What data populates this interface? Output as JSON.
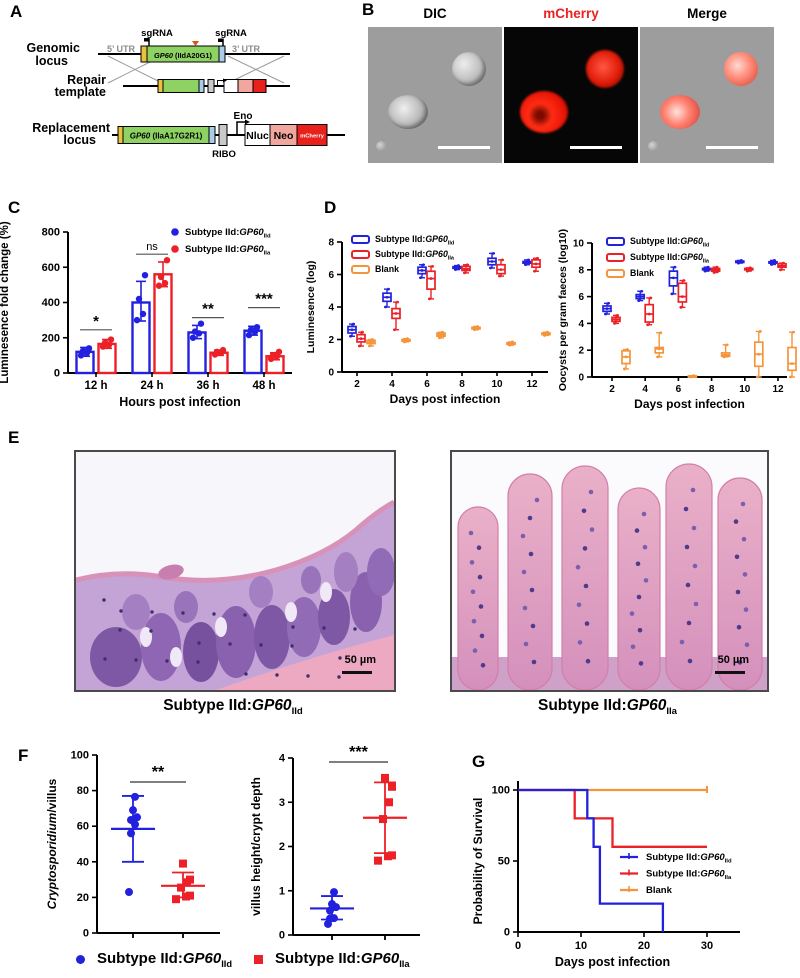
{
  "colors": {
    "blue": "#2121DE",
    "red": "#EC2027",
    "orange": "#F5953B",
    "utr_gray": "#8C8C8C",
    "gene_green": "#8ED264",
    "sp_yellow": "#EBC13D",
    "tm_blue": "#A9CCE8",
    "neo_pink": "#F2A79E",
    "mcherry_red": "#E8211D",
    "box_gray": "#C9C9C9"
  },
  "panels": {
    "a": {
      "letter": "A",
      "row_labels": {
        "genomic": [
          "Genomic",
          "locus"
        ],
        "repair": [
          "Repair",
          "template"
        ],
        "replacement": [
          "Replacement",
          "locus"
        ]
      },
      "utr5": "5’ UTR",
      "utr3": "3’ UTR",
      "sgrna1": "sgRNA",
      "sgrna2": "sgRNA",
      "gene_top_italic": "GP60",
      "gene_top_rest": " (IIdA20G1)",
      "gene_bottom_italic": "GP60",
      "gene_bottom_rest": " (IIaA17G2R1)",
      "eno": "Eno",
      "ribo": "RIBO",
      "nluc": "Nluc",
      "neo": "Neo",
      "mcherry": "mCherry"
    },
    "b": {
      "letter": "B",
      "titles": [
        "DIC",
        "mCherry",
        "Merge"
      ]
    },
    "c": {
      "letter": "C"
    },
    "d": {
      "letter": "D"
    },
    "e": {
      "letter": "E",
      "caption_left": {
        "pre": "Subtype IId:",
        "gene": "GP60",
        "sub": "IId"
      },
      "caption_right": {
        "pre": "Subtype IId:",
        "gene": "GP60",
        "sub": "IIa"
      },
      "scale_bar": "50 µm"
    },
    "f": {
      "letter": "F",
      "legend": [
        {
          "marker": "circle",
          "color": "#2121DE",
          "label": {
            "pre": "Subtype IId:",
            "gene": "GP60",
            "sub": "IId"
          }
        },
        {
          "marker": "square",
          "color": "#EC2027",
          "label": {
            "pre": "Subtype IId:",
            "gene": "GP60",
            "sub": "IIa"
          }
        }
      ]
    },
    "g": {
      "letter": "G"
    }
  },
  "chart_data": [
    {
      "id": "C",
      "type": "bar",
      "xlabel": "Hours post infection",
      "ylabel": "Luminesence fold change (%)",
      "ylim": [
        0,
        800
      ],
      "yticks": [
        0,
        200,
        400,
        600,
        800
      ],
      "categories": [
        "12 h",
        "24 h",
        "36 h",
        "48 h"
      ],
      "series": [
        {
          "legend": {
            "pre": "Subtype IId:",
            "gene": "GP60",
            "sub": "IId"
          },
          "color": "#2121DE",
          "values": [
            120,
            400,
            230,
            240
          ],
          "err_low": [
            95,
            295,
            195,
            215
          ],
          "err_high": [
            145,
            520,
            270,
            265
          ],
          "points": [
            [
              100,
              115,
              125,
              140
            ],
            [
              300,
              335,
              420,
              555
            ],
            [
              200,
              225,
              235,
              280
            ],
            [
              215,
              235,
              245,
              260
            ]
          ]
        },
        {
          "legend": {
            "pre": "Subtype IId:",
            "gene": "GP60",
            "sub": "IIa"
          },
          "color": "#EC2027",
          "values": [
            165,
            560,
            115,
            95
          ],
          "err_low": [
            140,
            490,
            100,
            75
          ],
          "err_high": [
            190,
            630,
            130,
            115
          ],
          "points": [
            [
              150,
              160,
              170,
              190
            ],
            [
              495,
              510,
              545,
              640
            ],
            [
              105,
              115,
              120,
              130
            ],
            [
              80,
              95,
              100,
              120
            ]
          ]
        }
      ],
      "significance": [
        {
          "label": "*",
          "y": 245
        },
        {
          "label": "ns",
          "y": 674
        },
        {
          "label": "**",
          "y": 314
        },
        {
          "label": "***",
          "y": 371
        }
      ]
    },
    {
      "id": "D1",
      "type": "box",
      "xlabel": "Days post infection",
      "ylabel": "Luminesence (log)",
      "ylim": [
        0,
        8
      ],
      "yticks": [
        0,
        2,
        4,
        6,
        8
      ],
      "x": [
        2,
        4,
        6,
        8,
        10,
        12
      ],
      "series": [
        {
          "legend": {
            "pre": "Subtype IId:",
            "gene": "GP60",
            "sub": "IId"
          },
          "color": "#2121DE",
          "boxes": [
            [
              2.2,
              2.4,
              2.6,
              2.8,
              2.95
            ],
            [
              4.0,
              4.35,
              4.6,
              4.85,
              5.1
            ],
            [
              5.8,
              6.05,
              6.25,
              6.45,
              6.6
            ],
            [
              6.3,
              6.38,
              6.42,
              6.48,
              6.55
            ],
            [
              6.4,
              6.6,
              6.8,
              7.0,
              7.3
            ],
            [
              6.6,
              6.7,
              6.75,
              6.8,
              6.9
            ]
          ]
        },
        {
          "legend": {
            "pre": "Subtype IId:",
            "gene": "GP60",
            "sub": "IIa"
          },
          "color": "#EC2027",
          "boxes": [
            [
              1.6,
              1.85,
              2.05,
              2.3,
              2.45
            ],
            [
              2.6,
              3.3,
              3.6,
              3.9,
              4.3
            ],
            [
              4.5,
              5.1,
              5.75,
              6.2,
              6.5
            ],
            [
              6.1,
              6.25,
              6.35,
              6.5,
              6.6
            ],
            [
              5.9,
              6.05,
              6.3,
              6.6,
              6.9
            ],
            [
              6.2,
              6.45,
              6.65,
              6.9,
              7.0
            ]
          ]
        },
        {
          "legend": {
            "pre": "Blank"
          },
          "color": "#F5953B",
          "boxes": [
            [
              1.6,
              1.75,
              1.85,
              1.95,
              2.0
            ],
            [
              1.85,
              1.9,
              1.95,
              2.0,
              2.05
            ],
            [
              2.1,
              2.2,
              2.3,
              2.4,
              2.45
            ],
            [
              2.6,
              2.65,
              2.7,
              2.75,
              2.8
            ],
            [
              1.65,
              1.7,
              1.75,
              1.8,
              1.85
            ],
            [
              2.25,
              2.3,
              2.35,
              2.4,
              2.45
            ]
          ]
        }
      ]
    },
    {
      "id": "D2",
      "type": "box",
      "xlabel": "Days post infection",
      "ylabel": "Oocysts per gram faeces (log10)",
      "ylim": [
        0,
        10
      ],
      "yticks": [
        0,
        2,
        4,
        6,
        8,
        10
      ],
      "x": [
        2,
        4,
        6,
        8,
        10,
        12
      ],
      "series": [
        {
          "legend": {
            "pre": "Subtype IId:",
            "gene": "GP60",
            "sub": "IId"
          },
          "color": "#2121DE",
          "boxes": [
            [
              4.7,
              4.9,
              5.1,
              5.3,
              5.5
            ],
            [
              5.7,
              5.85,
              6.0,
              6.15,
              6.4
            ],
            [
              6.2,
              6.8,
              7.4,
              7.9,
              8.2
            ],
            [
              7.9,
              8.0,
              8.05,
              8.1,
              8.2
            ],
            [
              8.5,
              8.55,
              8.6,
              8.65,
              8.7
            ],
            [
              8.4,
              8.5,
              8.55,
              8.6,
              8.7
            ]
          ]
        },
        {
          "legend": {
            "pre": "Subtype IId:",
            "gene": "GP60",
            "sub": "IIa"
          },
          "color": "#EC2027",
          "boxes": [
            [
              4.0,
              4.15,
              4.3,
              4.45,
              4.6
            ],
            [
              3.9,
              4.1,
              4.7,
              5.4,
              5.9
            ],
            [
              5.2,
              5.6,
              6.0,
              7.0,
              7.2
            ],
            [
              7.8,
              7.9,
              8.0,
              8.1,
              8.2
            ],
            [
              7.9,
              8.0,
              8.05,
              8.1,
              8.15
            ],
            [
              8.0,
              8.2,
              8.3,
              8.45,
              8.5
            ]
          ]
        },
        {
          "legend": {
            "pre": "Blank"
          },
          "color": "#F5953B",
          "boxes": [
            [
              0.6,
              1.0,
              1.5,
              1.95,
              2.05
            ],
            [
              1.5,
              1.8,
              2.1,
              2.2,
              3.3
            ],
            [
              0.0,
              0.02,
              0.05,
              0.08,
              0.1
            ],
            [
              1.5,
              1.55,
              1.65,
              1.8,
              2.4
            ],
            [
              0.0,
              0.8,
              1.7,
              2.6,
              3.4
            ],
            [
              0.0,
              0.5,
              1.0,
              2.2,
              3.35
            ]
          ]
        }
      ]
    },
    {
      "id": "F1",
      "type": "scatter",
      "ylabel_parts": [
        {
          "text": "Cryptosporidium",
          "italic": true
        },
        {
          "text": "/villus",
          "italic": false
        }
      ],
      "ylim": [
        0,
        100
      ],
      "yticks": [
        0,
        20,
        40,
        60,
        80,
        100
      ],
      "groups": [
        {
          "color": "#2121DE",
          "marker": "circle",
          "points": [
            23,
            56,
            61,
            63.5,
            65,
            69,
            76.5
          ],
          "mean": 58.5,
          "err": [
            40,
            77
          ]
        },
        {
          "color": "#EC2027",
          "marker": "square",
          "points": [
            19,
            20.5,
            21,
            25.5,
            28.5,
            30,
            39
          ],
          "mean": 26.5,
          "err": [
            20,
            34
          ]
        }
      ],
      "significance": {
        "label": "**"
      }
    },
    {
      "id": "F2",
      "type": "scatter",
      "ylabel_parts": [
        {
          "text": "villus height/crypt depth",
          "italic": false
        }
      ],
      "ylim": [
        0,
        4
      ],
      "yticks": [
        0,
        1,
        2,
        3,
        4
      ],
      "groups": [
        {
          "color": "#2121DE",
          "marker": "circle",
          "points": [
            0.25,
            0.37,
            0.38,
            0.55,
            0.63,
            0.7,
            0.97
          ],
          "mean": 0.6,
          "err": [
            0.35,
            0.88
          ]
        },
        {
          "color": "#EC2027",
          "marker": "square",
          "points": [
            1.68,
            1.78,
            1.8,
            2.62,
            3.0,
            3.35,
            3.55
          ],
          "mean": 2.65,
          "err": [
            1.85,
            3.45
          ]
        }
      ],
      "significance": {
        "label": "***"
      }
    },
    {
      "id": "G",
      "type": "survival",
      "xlabel": "Days post infection",
      "ylabel": "Probability of Survival",
      "xlim": [
        0,
        30
      ],
      "xticks": [
        0,
        10,
        20,
        30
      ],
      "ylim": [
        0,
        100
      ],
      "yticks": [
        0,
        50,
        100
      ],
      "series": [
        {
          "legend": {
            "pre": "Subtype IId:",
            "gene": "GP60",
            "sub": "IId"
          },
          "color": "#2121DE",
          "steps": [
            [
              0,
              100
            ],
            [
              11,
              100
            ],
            [
              11,
              80
            ],
            [
              12,
              80
            ],
            [
              12,
              60
            ],
            [
              13,
              60
            ],
            [
              13,
              20
            ],
            [
              23,
              20
            ],
            [
              23,
              0
            ]
          ]
        },
        {
          "legend": {
            "pre": "Subtype IId:",
            "gene": "GP60",
            "sub": "IIa"
          },
          "color": "#EC2027",
          "steps": [
            [
              0,
              100
            ],
            [
              9,
              100
            ],
            [
              9,
              80
            ],
            [
              15,
              80
            ],
            [
              15,
              60
            ],
            [
              30,
              60
            ]
          ]
        },
        {
          "legend": {
            "pre": "Blank"
          },
          "color": "#F5953B",
          "end_tick": true,
          "steps": [
            [
              0,
              100
            ],
            [
              30,
              100
            ]
          ]
        }
      ]
    }
  ]
}
